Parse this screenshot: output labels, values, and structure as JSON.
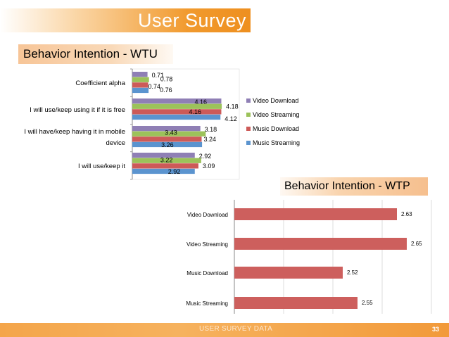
{
  "title": "User Survey",
  "section_wtu": "Behavior Intention - WTU",
  "section_wtp": "Behavior Intention - WTP",
  "footer": {
    "text": "USER SURVEY DATA",
    "page": "33"
  },
  "colors": {
    "video_download": "#8f7fb5",
    "video_streaming": "#9cc25a",
    "music_download": "#cd5a58",
    "music_streaming": "#5b94cf",
    "wtp_bar": "#cd5f5d",
    "accent": "#f19a2e"
  },
  "chart_data": [
    {
      "type": "bar",
      "orientation": "horizontal",
      "title": "Behavior Intention - WTU",
      "categories": [
        "Coefficient alpha",
        "I will use/keep using it if it is free",
        "I will have/keep having it in mobile device",
        "I will use/keep it"
      ],
      "series": [
        {
          "name": "Video Download",
          "values": [
            0.71,
            4.16,
            3.18,
            2.92
          ]
        },
        {
          "name": "Video Streaming",
          "values": [
            0.78,
            4.18,
            3.43,
            3.22
          ]
        },
        {
          "name": "Music Download",
          "values": [
            0.74,
            4.16,
            3.24,
            3.09
          ]
        },
        {
          "name": "Music Streaming",
          "values": [
            0.76,
            4.12,
            3.26,
            2.92
          ]
        }
      ],
      "xlim": [
        0,
        5
      ],
      "legend": "right"
    },
    {
      "type": "bar",
      "orientation": "horizontal",
      "title": "Behavior Intention - WTP",
      "categories": [
        "Video Download",
        "Video Streaming",
        "Music Download",
        "Music Streaming"
      ],
      "values": [
        2.63,
        2.65,
        2.52,
        2.55
      ],
      "xlim": [
        2.3,
        2.7
      ]
    }
  ]
}
